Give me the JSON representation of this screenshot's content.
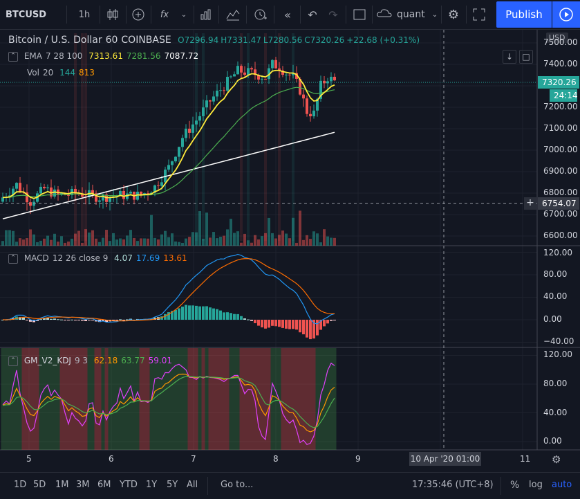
{
  "toolbar": {
    "symbol": "BTCUSD",
    "interval": "1h",
    "fx_label": "fx",
    "layout_name": "quant",
    "publish_label": "Publish"
  },
  "legend": {
    "title": "Bitcoin / U.S. Dollar",
    "interval": "60",
    "exchange": "COINBASE",
    "open": "O7296.94",
    "high": "H7331.47",
    "low": "L7280.56",
    "close": "C7320.26",
    "change": "+22.68 (+0.31%)",
    "ema_name": "EMA",
    "ema_params": "7 28 100",
    "ema_v1": "7313.61",
    "ema_v2": "7281.56",
    "ema_v3": "7087.72",
    "vol_name": "Vol",
    "vol_params": "20",
    "vol_v1": "144",
    "vol_v2": "813",
    "macd_name": "MACD",
    "macd_params": "12 26 close 9",
    "macd_v1": "4.07",
    "macd_v2": "17.69",
    "macd_v3": "13.61",
    "kdj_name": "GM_V2_KDJ",
    "kdj_params": "9 3",
    "kdj_v1": "62.18",
    "kdj_v2": "63.77",
    "kdj_v3": "59.01"
  },
  "price_axis": {
    "currency": "USD",
    "labels": [
      "7500.00",
      "7400.00",
      "7300.00",
      "7200.00",
      "7100.00",
      "7000.00",
      "6900.00",
      "6800.00",
      "6700.00",
      "6600.00"
    ],
    "last_price": "7320.26",
    "countdown": "24:14",
    "crosshair_price": "6754.07"
  },
  "macd_axis": {
    "labels": [
      "120.00",
      "80.00",
      "40.00",
      "0.00",
      "−40.00"
    ]
  },
  "kdj_axis": {
    "labels": [
      "120.00",
      "80.00",
      "40.00",
      "0.00"
    ]
  },
  "time_axis": {
    "labels": [
      "5",
      "6",
      "7",
      "8",
      "9",
      "11"
    ],
    "crosshair_time": "10 Apr '20   01:00"
  },
  "bottom": {
    "ranges": [
      "1D",
      "5D",
      "1M",
      "3M",
      "6M",
      "YTD",
      "1Y",
      "5Y",
      "All"
    ],
    "goto": "Go to...",
    "clock": "17:35:46 (UTC+8)",
    "percent": "%",
    "log": "log",
    "auto": "auto"
  },
  "colors": {
    "up": "#26a69a",
    "down": "#ef5350",
    "ema7": "#ffeb3b",
    "ema28": "#4caf50",
    "ema100": "#ffffff",
    "macd": "#2196f3",
    "signal": "#ff6d00",
    "k": "#ff9800",
    "d": "#4caf50",
    "j": "#e040fb",
    "accent": "#2962ff"
  }
}
